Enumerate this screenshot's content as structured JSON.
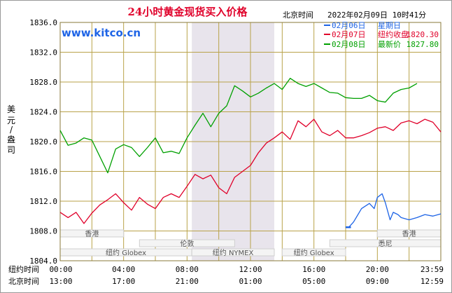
{
  "chart_data": {
    "type": "line",
    "title": "24小时黄金现货买入价格",
    "timezone_label": "北京时间",
    "datetime": "2022年02月09日 10时41分",
    "watermark": "www.kitco.cn",
    "ylabel": "美元/盎司",
    "ylim": [
      1804.0,
      1836.0
    ],
    "yticks": [
      "1836.0",
      "1832.0",
      "1828.0",
      "1824.0",
      "1820.0",
      "1816.0",
      "1812.0",
      "1808.0",
      "1804.0"
    ],
    "x_range_hours_ny": [
      0,
      24
    ],
    "x_rows": [
      {
        "label": "纽约时间",
        "ticks": [
          "00:00",
          "04:00",
          "08:00",
          "12:00",
          "16:00",
          "20:00",
          "23:59"
        ]
      },
      {
        "label": "北京时间",
        "ticks": [
          "13:00",
          "17:00",
          "21:00",
          "01:00",
          "05:00",
          "09:00",
          "12:59"
        ]
      }
    ],
    "shaded_session_hours": [
      8.3,
      13.5
    ],
    "sessions": [
      {
        "label": "香港",
        "start": 0,
        "end": 4,
        "row": 0
      },
      {
        "label": "香港",
        "start": 20,
        "end": 24,
        "row": 0
      },
      {
        "label": "伦敦",
        "start": 5,
        "end": 11,
        "row": 1
      },
      {
        "label": "悉尼",
        "start": 17,
        "end": 24,
        "row": 1
      },
      {
        "label": "纽约 Globex",
        "start": 0,
        "end": 8.3,
        "row": 2
      },
      {
        "label": "纽约 NYMEX",
        "start": 8.3,
        "end": 13.5,
        "row": 2
      },
      {
        "label": "纽约 Globex",
        "start": 14,
        "end": 18,
        "row": 2
      }
    ],
    "legend": [
      {
        "date": "02月06日",
        "text": "星期日",
        "color": "#1e64e6"
      },
      {
        "date": "02月07日",
        "text": "纽约收盘",
        "value": "1820.30",
        "color": "#e0002a"
      },
      {
        "date": "02月08日",
        "text": "最新价",
        "value": "1827.80",
        "color": "#00a000"
      }
    ],
    "series": [
      {
        "color": "#00a000",
        "x": [
          0,
          0.5,
          1,
          1.5,
          2,
          2.5,
          3,
          3.5,
          4,
          4.5,
          5,
          5.5,
          6,
          6.5,
          7,
          7.5,
          8,
          8.5,
          9,
          9.5,
          10,
          10.5,
          11,
          11.5,
          12,
          12.5,
          13,
          13.5,
          14,
          14.5,
          15,
          15.5,
          16,
          16.5,
          17,
          17.5,
          18,
          18.5,
          19,
          19.5,
          20,
          20.5,
          21,
          21.5,
          22,
          22.5
        ],
        "y": [
          1821.5,
          1819.5,
          1819.8,
          1820.5,
          1820.2,
          1818.0,
          1815.8,
          1819.0,
          1819.6,
          1819.2,
          1818.0,
          1819.2,
          1820.5,
          1818.5,
          1818.7,
          1818.4,
          1820.5,
          1822.2,
          1823.8,
          1822.0,
          1823.8,
          1824.8,
          1827.5,
          1826.8,
          1826.0,
          1826.5,
          1827.2,
          1827.8,
          1827.0,
          1828.5,
          1827.8,
          1827.4,
          1827.8,
          1827.2,
          1826.6,
          1826.5,
          1825.9,
          1825.8,
          1825.8,
          1826.2,
          1825.5,
          1825.3,
          1826.5,
          1827.0,
          1827.2,
          1827.8
        ]
      },
      {
        "color": "#e0002a",
        "x": [
          0,
          0.5,
          1,
          1.5,
          2,
          2.5,
          3,
          3.5,
          4,
          4.5,
          5,
          5.5,
          6,
          6.5,
          7,
          7.5,
          8,
          8.5,
          9,
          9.5,
          10,
          10.5,
          11,
          11.5,
          12,
          12.5,
          13,
          13.5,
          14,
          14.5,
          15,
          15.5,
          16,
          16.5,
          17,
          17.5,
          18,
          18.5,
          19,
          19.5,
          20,
          20.5,
          21,
          21.5,
          22,
          22.5,
          23,
          23.5,
          24
        ],
        "y": [
          1810.5,
          1809.8,
          1810.5,
          1809.0,
          1810.4,
          1811.5,
          1812.2,
          1813.0,
          1811.8,
          1810.8,
          1812.5,
          1811.6,
          1811.0,
          1812.5,
          1813.0,
          1812.5,
          1814.0,
          1815.6,
          1815.0,
          1815.5,
          1813.8,
          1813.0,
          1815.2,
          1816.0,
          1816.8,
          1818.5,
          1819.8,
          1820.5,
          1821.3,
          1820.3,
          1822.8,
          1822.0,
          1823.0,
          1821.3,
          1820.8,
          1821.5,
          1820.5,
          1820.5,
          1820.8,
          1821.2,
          1821.8,
          1822.0,
          1821.5,
          1822.5,
          1822.8,
          1822.4,
          1823.0,
          1822.6,
          1821.3
        ]
      },
      {
        "color": "#1e64e6",
        "x": [
          18,
          18.2,
          18.5,
          19,
          19.5,
          19.8,
          20,
          20.3,
          20.5,
          20.8,
          21,
          21.3,
          21.5,
          22,
          22.5,
          23,
          23.5,
          24
        ],
        "y": [
          1808.5,
          1808.5,
          1809.2,
          1811.0,
          1811.7,
          1811.0,
          1812.5,
          1813.0,
          1811.8,
          1809.5,
          1810.5,
          1810.2,
          1809.8,
          1809.5,
          1809.8,
          1810.2,
          1810.0,
          1810.3
        ]
      }
    ]
  }
}
